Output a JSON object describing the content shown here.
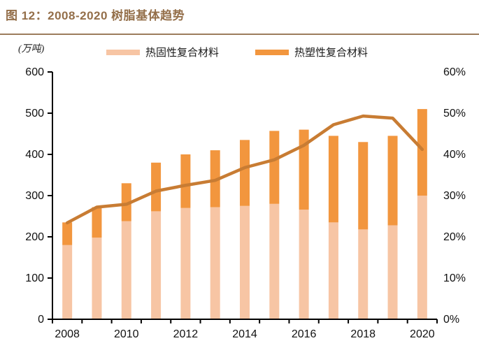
{
  "page": {
    "title": "图 12：2008-2020 树脂基体趋势",
    "unit_label": "(万吨)"
  },
  "legend": [
    {
      "label": "热固性复合材料",
      "color": "#F7C5A4"
    },
    {
      "label": "热塑性复合材料",
      "color": "#F2963E"
    }
  ],
  "colors": {
    "title_text": "#946F4A",
    "title_rule": "#9C7C5C",
    "thermoset_bar": "#F7C5A4",
    "thermoplastic_bar": "#F2963E",
    "share_line": "#C87C33",
    "axis_line": "#000000",
    "tick_text": "#111111"
  },
  "chart_data": {
    "type": "bar",
    "subtype": "stacked-bars-with-line",
    "title": "图 12：2008-2020 树脂基体趋势",
    "categories": [
      "2008",
      "2009",
      "2010",
      "2011",
      "2012",
      "2013",
      "2014",
      "2015",
      "2016",
      "2017",
      "2018",
      "2019",
      "2020"
    ],
    "series": [
      {
        "name": "热固性复合材料",
        "type": "bar",
        "stack": "total",
        "axis": "left",
        "values": [
          180,
          198,
          238,
          262,
          270,
          272,
          275,
          280,
          266,
          235,
          218,
          228,
          300
        ]
      },
      {
        "name": "热塑性复合材料",
        "type": "bar",
        "stack": "total",
        "axis": "left",
        "values": [
          55,
          74,
          92,
          118,
          130,
          138,
          160,
          177,
          194,
          210,
          212,
          217,
          210
        ]
      }
    ],
    "line_series": {
      "type": "line",
      "axis": "right",
      "values": [
        23.4,
        27.2,
        27.9,
        31.1,
        32.5,
        33.7,
        36.8,
        38.7,
        42.2,
        47.2,
        49.3,
        48.8,
        41.2
      ]
    },
    "left_axis": {
      "unit": "(万吨)",
      "range": [
        0,
        600
      ],
      "tick_values": [
        0,
        100,
        200,
        300,
        400,
        500,
        600
      ],
      "tick_labels": [
        "0",
        "100",
        "200",
        "300",
        "400",
        "500",
        "600"
      ]
    },
    "right_axis": {
      "range": [
        0,
        60
      ],
      "tick_values": [
        0,
        10,
        20,
        30,
        40,
        50,
        60
      ],
      "tick_labels": [
        "0%",
        "10%",
        "20%",
        "30%",
        "40%",
        "50%",
        "60%"
      ]
    },
    "x_axis": {
      "labeled_categories": [
        "2008",
        "2010",
        "2012",
        "2014",
        "2016",
        "2018",
        "2020"
      ]
    },
    "grid": false,
    "legend_position": "top"
  }
}
